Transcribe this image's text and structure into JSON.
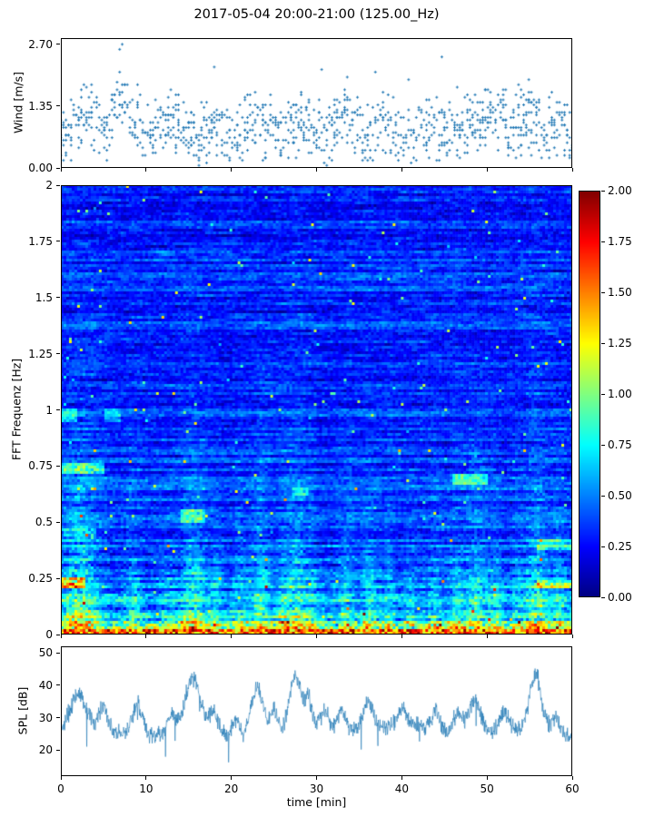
{
  "title": "2017-05-04 20:00-21:00 (125.00_Hz)",
  "xlabel": "time [min]",
  "xticks": [
    {
      "v": 0,
      "label": "0"
    },
    {
      "v": 10,
      "label": "10"
    },
    {
      "v": 20,
      "label": "20"
    },
    {
      "v": 30,
      "label": "30"
    },
    {
      "v": 40,
      "label": "40"
    },
    {
      "v": 50,
      "label": "50"
    },
    {
      "v": 60,
      "label": "60"
    }
  ],
  "colors": {
    "series_blue": "#1f77b4",
    "axis": "#000000",
    "background": "#ffffff"
  },
  "colorbar": {
    "colormap": "jet",
    "vmin": 0,
    "vmax": 2,
    "ticks": [
      {
        "v": 0,
        "label": "0.00"
      },
      {
        "v": 0.25,
        "label": "0.25"
      },
      {
        "v": 0.5,
        "label": "0.50"
      },
      {
        "v": 0.75,
        "label": "0.75"
      },
      {
        "v": 1,
        "label": "1.00"
      },
      {
        "v": 1.25,
        "label": "1.25"
      },
      {
        "v": 1.5,
        "label": "1.50"
      },
      {
        "v": 1.75,
        "label": "1.75"
      },
      {
        "v": 2,
        "label": "2.00"
      }
    ]
  },
  "chart_data": [
    {
      "id": "wind",
      "type": "scatter",
      "ylabel": "Wind [m/s]",
      "xlim": [
        0,
        60
      ],
      "ylim": [
        0,
        2.83
      ],
      "yticks": [
        {
          "v": 0,
          "label": "0.00"
        },
        {
          "v": 1.35,
          "label": "1.35"
        },
        {
          "v": 2.7,
          "label": "2.70"
        }
      ],
      "marker_color": "#1f77b4",
      "gen": {
        "seed": 42,
        "dt": 0.3,
        "base_mean": 0.62,
        "sd": 0.45,
        "quantum": 0.055,
        "points_min": 3,
        "points_rand": 5,
        "gusts": [
          {
            "t": 3,
            "peak": 1.9,
            "w": 1.2
          },
          {
            "t": 7,
            "peak": 2.7,
            "w": 1.0
          },
          {
            "t": 13,
            "peak": 1.4,
            "w": 1.0
          },
          {
            "t": 18,
            "peak": 1.3,
            "w": 1.0
          },
          {
            "t": 23,
            "peak": 1.4,
            "w": 1.2
          },
          {
            "t": 28,
            "peak": 1.4,
            "w": 1.0
          },
          {
            "t": 33,
            "peak": 1.5,
            "w": 1.2
          },
          {
            "t": 38,
            "peak": 1.3,
            "w": 1.0
          },
          {
            "t": 44,
            "peak": 1.5,
            "w": 1.2
          },
          {
            "t": 48,
            "peak": 1.5,
            "w": 1.0
          },
          {
            "t": 51,
            "peak": 1.8,
            "w": 1.2
          },
          {
            "t": 55,
            "peak": 1.7,
            "w": 1.2
          },
          {
            "t": 58,
            "peak": 1.4,
            "w": 0.8
          }
        ]
      }
    },
    {
      "id": "spectrogram",
      "type": "heatmap",
      "ylabel": "FFT Frequenz [Hz]",
      "xlim": [
        0,
        60
      ],
      "ylim": [
        0,
        2
      ],
      "vmin": 0,
      "vmax": 2,
      "colormap": "jet",
      "yticks": [
        {
          "v": 0,
          "label": "0"
        },
        {
          "v": 0.25,
          "label": "0.25"
        },
        {
          "v": 0.5,
          "label": "0.5"
        },
        {
          "v": 0.75,
          "label": "0.75"
        },
        {
          "v": 1,
          "label": "1"
        },
        {
          "v": 1.25,
          "label": "1.25"
        },
        {
          "v": 1.5,
          "label": "1.5"
        },
        {
          "v": 1.75,
          "label": "1.75"
        },
        {
          "v": 2,
          "label": "2"
        }
      ],
      "gen": {
        "seed": 7,
        "cols": 188,
        "rows": 165,
        "base": 0.32,
        "cell_noise": 0.18,
        "row_bias": 0.12,
        "streak": 0.5,
        "low_freq_gain": 1.4,
        "low_freq_scale": 0.18,
        "hot_band_freq": 0.025,
        "warm_band_freq": 0.06,
        "column_events": [
          [
            2.2,
            1.6,
            0.55,
            0.5
          ],
          [
            8.6,
            0.8,
            0.3,
            0.4
          ],
          [
            12.5,
            0.6,
            0.25,
            0.3
          ],
          [
            15.6,
            1.0,
            0.5,
            0.5
          ],
          [
            18.2,
            0.5,
            0.3,
            0.35
          ],
          [
            21.0,
            0.6,
            0.25,
            0.4
          ],
          [
            23.5,
            0.8,
            0.45,
            0.45
          ],
          [
            26.0,
            0.5,
            0.3,
            0.4
          ],
          [
            27.6,
            0.9,
            0.5,
            0.5
          ],
          [
            29.5,
            0.5,
            0.3,
            0.35
          ],
          [
            33.5,
            0.7,
            0.3,
            0.4
          ],
          [
            36.2,
            0.7,
            0.35,
            0.4
          ],
          [
            38.5,
            0.5,
            0.25,
            0.35
          ],
          [
            41.0,
            0.5,
            0.2,
            0.35
          ],
          [
            44.0,
            0.6,
            0.25,
            0.4
          ],
          [
            46.3,
            0.5,
            0.3,
            0.4
          ],
          [
            48.6,
            0.9,
            0.4,
            0.45
          ],
          [
            51.0,
            0.6,
            0.3,
            0.4
          ],
          [
            53.5,
            0.5,
            0.25,
            0.35
          ],
          [
            55.8,
            1.0,
            0.5,
            0.5
          ],
          [
            58.5,
            0.6,
            0.3,
            0.4
          ]
        ],
        "patches": [
          [
            0,
            5,
            0.71,
            0.76,
            0.5
          ],
          [
            0,
            3,
            0.2,
            0.25,
            0.6
          ],
          [
            0,
            2,
            0.95,
            1.0,
            0.3
          ],
          [
            46,
            50,
            0.67,
            0.72,
            0.45
          ],
          [
            14,
            17,
            0.5,
            0.56,
            0.35
          ],
          [
            0,
            4,
            0.44,
            0.47,
            0.3
          ],
          [
            56,
            60,
            0.38,
            0.42,
            0.35
          ],
          [
            56,
            60,
            0.2,
            0.24,
            0.4
          ],
          [
            27,
            29,
            0.62,
            0.66,
            0.3
          ],
          [
            5,
            7,
            0.95,
            1.0,
            0.25
          ]
        ]
      }
    },
    {
      "id": "spl",
      "type": "line",
      "ylabel": "SPL [dB]",
      "xlim": [
        0,
        60
      ],
      "ylim": [
        12,
        52
      ],
      "yticks": [
        {
          "v": 20,
          "label": "20"
        },
        {
          "v": 30,
          "label": "30"
        },
        {
          "v": 40,
          "label": "40"
        },
        {
          "v": 50,
          "label": "50"
        }
      ],
      "line_color": "#1f77b4",
      "gen": {
        "seed": 99,
        "dt": 0.04,
        "base": 26.0,
        "noise": 3.2,
        "wander": [
          [
            1.5,
            0.5,
            0.0
          ],
          [
            1.2,
            0.17,
            2.0
          ]
        ],
        "peaks": [
          [
            2.0,
            9,
            0.8
          ],
          [
            5.0,
            6,
            0.5
          ],
          [
            9.0,
            10,
            0.6
          ],
          [
            13.0,
            5,
            0.5
          ],
          [
            15.5,
            16,
            0.9
          ],
          [
            18.0,
            6,
            0.5
          ],
          [
            20.5,
            5,
            0.4
          ],
          [
            23.0,
            15,
            0.7
          ],
          [
            25.0,
            6,
            0.4
          ],
          [
            27.5,
            16,
            0.6
          ],
          [
            29.0,
            8,
            0.4
          ],
          [
            31.0,
            5,
            0.4
          ],
          [
            33.0,
            6,
            0.5
          ],
          [
            36.0,
            9,
            0.6
          ],
          [
            40.0,
            5,
            0.5
          ],
          [
            44.0,
            6,
            0.5
          ],
          [
            46.5,
            7,
            0.5
          ],
          [
            48.5,
            11,
            0.8
          ],
          [
            52.0,
            6,
            0.5
          ],
          [
            55.7,
            18,
            0.7
          ],
          [
            58.0,
            6,
            0.5
          ]
        ]
      }
    }
  ]
}
